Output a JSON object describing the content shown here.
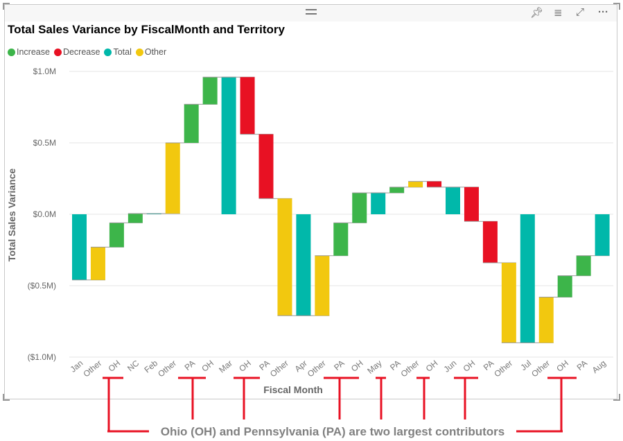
{
  "header": {
    "title": "Total Sales Variance by FiscalMonth and Territory",
    "icons": [
      "pin-icon",
      "filter-icon",
      "focus-mode-icon",
      "more-options-icon"
    ]
  },
  "legend": [
    {
      "label": "Increase",
      "color": "#3db54a"
    },
    {
      "label": "Decrease",
      "color": "#e81123"
    },
    {
      "label": "Total",
      "color": "#01b8aa"
    },
    {
      "label": "Other",
      "color": "#f2c80f"
    }
  ],
  "annotation": {
    "text": "Ohio (OH) and Pennsylvania (PA) are two largest contributors",
    "color": "#e81123"
  },
  "chart_data": {
    "type": "waterfall",
    "title": "Total Sales Variance by FiscalMonth and Territory",
    "xlabel": "Fiscal Month",
    "ylabel": "Total Sales Variance",
    "ylim": [
      -1.0,
      1.0
    ],
    "y_ticks": [
      {
        "v": 1.0,
        "label": "$1.0M"
      },
      {
        "v": 0.5,
        "label": "$0.5M"
      },
      {
        "v": 0.0,
        "label": "$0.0M"
      },
      {
        "v": -0.5,
        "label": "($0.5M)"
      },
      {
        "v": -1.0,
        "label": "($1.0M)"
      }
    ],
    "unit": "millions USD",
    "categories": [
      "Jan",
      "Other",
      "OH",
      "NC",
      "Feb",
      "Other",
      "PA",
      "OH",
      "Mar",
      "OH",
      "PA",
      "Other",
      "Apr",
      "Other",
      "PA",
      "OH",
      "May",
      "PA",
      "Other",
      "OH",
      "Jun",
      "OH",
      "PA",
      "Other",
      "Jul",
      "Other",
      "OH",
      "PA",
      "Aug"
    ],
    "kinds": [
      "Total",
      "Other",
      "Increase",
      "Increase",
      "Total",
      "Other",
      "Increase",
      "Increase",
      "Total",
      "Decrease",
      "Decrease",
      "Other",
      "Total",
      "Other",
      "Increase",
      "Increase",
      "Total",
      "Increase",
      "Other",
      "Decrease",
      "Total",
      "Decrease",
      "Decrease",
      "Other",
      "Total",
      "Other",
      "Increase",
      "Increase",
      "Total"
    ],
    "running_totals": [
      -0.46,
      -0.23,
      -0.06,
      0.005,
      0.005,
      0.5,
      0.77,
      0.96,
      0.96,
      0.56,
      0.11,
      -0.71,
      -0.71,
      -0.29,
      -0.06,
      0.15,
      0.15,
      0.19,
      0.23,
      0.19,
      0.19,
      -0.05,
      -0.34,
      -0.9,
      -0.9,
      -0.58,
      -0.43,
      -0.29,
      -0.29
    ],
    "highlighted_categories_index": [
      2,
      6,
      7,
      9,
      10,
      14,
      15,
      17,
      19,
      21,
      22,
      26,
      27
    ],
    "grid": true,
    "legend_position": "top-left"
  }
}
